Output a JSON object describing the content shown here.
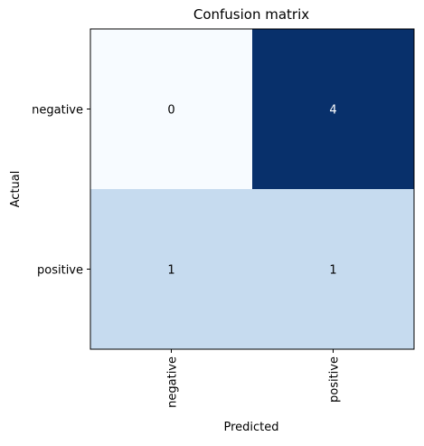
{
  "chart_data": {
    "type": "heatmap",
    "title": "Confusion matrix",
    "xlabel": "Predicted",
    "ylabel": "Actual",
    "x_categories": [
      "negative",
      "positive"
    ],
    "y_categories": [
      "negative",
      "positive"
    ],
    "values": [
      [
        0,
        4
      ],
      [
        1,
        1
      ]
    ],
    "colormap": "Blues",
    "colors": {
      "min": "#f7fbff",
      "mid": "#c6dbef",
      "max": "#08306b",
      "text_dark": "#000000",
      "text_light": "#ffffff"
    },
    "grid": false,
    "legend": "none"
  }
}
